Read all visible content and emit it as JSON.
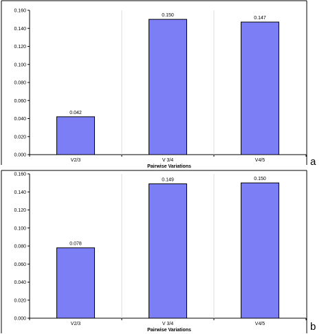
{
  "chart_data": [
    {
      "type": "bar",
      "panel_label": "a",
      "categories": [
        "V2/3",
        "V 3/4",
        "V4/5"
      ],
      "values": [
        0.042,
        0.15,
        0.147
      ],
      "data_labels": [
        "0.042",
        "0.150",
        "0.147"
      ],
      "xlabel": "Pairwise Variations",
      "ylabel": "",
      "ylim": [
        0,
        0.16
      ],
      "yticks": [
        "0.000",
        "0.020",
        "0.040",
        "0.060",
        "0.080",
        "0.100",
        "0.120",
        "0.140",
        "0.160"
      ],
      "grid": "vertical separators",
      "bar_color": "#7b7ef5"
    },
    {
      "type": "bar",
      "panel_label": "b",
      "categories": [
        "V2/3",
        "V 3/4",
        "V4/5"
      ],
      "values": [
        0.078,
        0.149,
        0.15
      ],
      "data_labels": [
        "0.078",
        "0.149",
        "0.150"
      ],
      "xlabel": "Pairwise Variations",
      "ylabel": "",
      "ylim": [
        0,
        0.16
      ],
      "yticks": [
        "0.000",
        "0.020",
        "0.040",
        "0.060",
        "0.080",
        "0.100",
        "0.120",
        "0.140",
        "0.160"
      ],
      "grid": "vertical separators",
      "bar_color": "#7b7ef5"
    }
  ]
}
